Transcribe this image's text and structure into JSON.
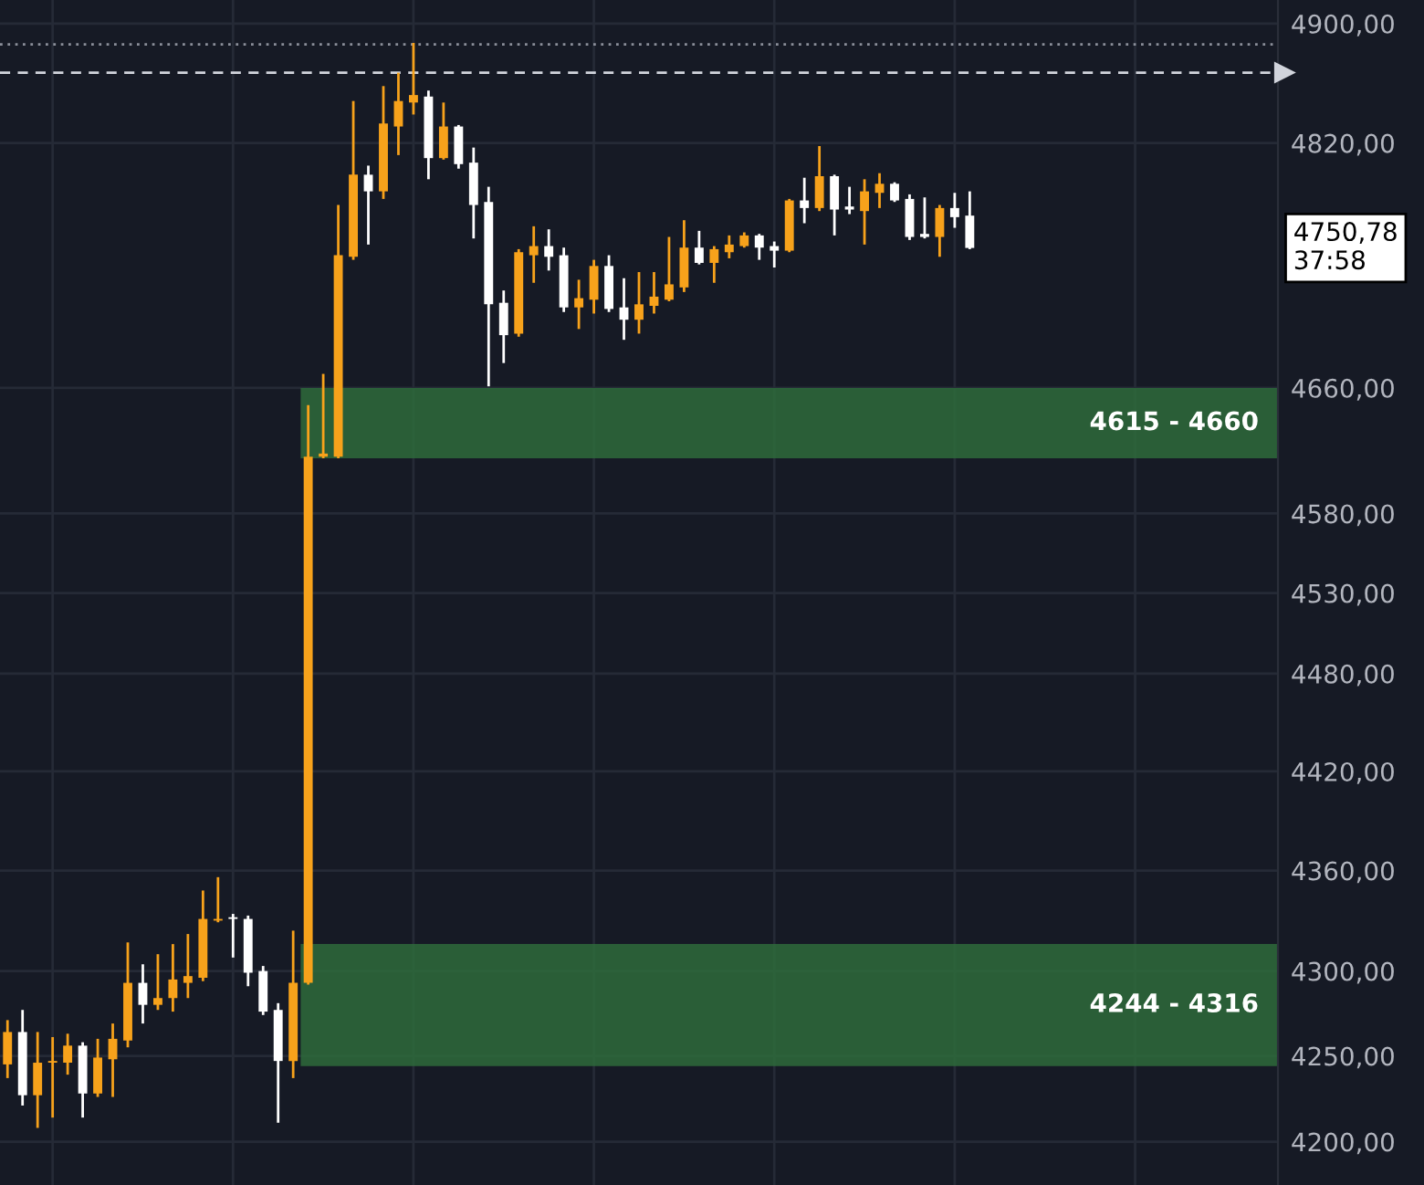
{
  "chart_data": {
    "type": "candlestick",
    "log": "y",
    "grid": true,
    "categories": [
      null,
      null,
      null,
      null,
      null,
      null,
      null,
      null,
      null,
      null,
      null,
      null,
      null,
      null,
      null,
      null,
      null,
      null,
      null,
      null,
      null,
      null,
      null,
      null,
      null,
      null,
      null,
      null,
      null,
      null,
      null,
      null,
      null,
      null,
      null,
      null,
      null,
      null,
      null,
      null,
      null,
      null,
      null,
      null,
      null,
      null,
      null,
      null,
      null,
      null,
      null,
      null,
      null,
      null,
      null,
      null,
      null,
      null,
      null,
      null,
      null,
      null,
      null,
      null,
      null,
      null,
      null,
      null,
      null,
      null,
      null,
      null,
      null,
      null,
      null,
      null,
      null,
      null,
      null,
      null,
      null,
      null,
      null,
      null,
      null
    ],
    "ohlc": [
      [
        4245,
        4271,
        4237,
        4264
      ],
      [
        4264,
        4277,
        4221,
        4227
      ],
      [
        4227,
        4264,
        4208,
        4246
      ],
      [
        4246,
        4261,
        4214,
        4247
      ],
      [
        4246,
        4263,
        4239,
        4256
      ],
      [
        4256,
        4258,
        4214,
        4228
      ],
      [
        4228,
        4260,
        4226,
        4249
      ],
      [
        4248,
        4269,
        4226,
        4260
      ],
      [
        4259,
        4317,
        4255,
        4293
      ],
      [
        4293,
        4304,
        4269,
        4280
      ],
      [
        4280,
        4310,
        4277,
        4284
      ],
      [
        4284,
        4316,
        4276,
        4295
      ],
      [
        4293,
        4322,
        4284,
        4297
      ],
      [
        4296,
        4348,
        4294,
        4331
      ],
      [
        4330,
        4356,
        4329,
        4331
      ],
      [
        4332,
        4334,
        4308,
        4331
      ],
      [
        4331,
        4333,
        4291,
        4299
      ],
      [
        4300,
        4303,
        4274,
        4276
      ],
      [
        4277,
        4281,
        4211,
        4247
      ],
      [
        4247,
        4324,
        4237,
        4293
      ],
      [
        4293,
        4649,
        4292,
        4616
      ],
      [
        4616,
        4669,
        4615,
        4618
      ],
      [
        4616,
        4779,
        4615,
        4746
      ],
      [
        4745,
        4848,
        4743,
        4799
      ],
      [
        4799,
        4805,
        4753,
        4788
      ],
      [
        4788,
        4858,
        4783,
        4833
      ],
      [
        4831,
        4867,
        4812,
        4848
      ],
      [
        4847,
        4887,
        4839,
        4852
      ],
      [
        4851,
        4855,
        4796,
        4810
      ],
      [
        4810,
        4847,
        4809,
        4831
      ],
      [
        4831,
        4832,
        4803,
        4806
      ],
      [
        4807,
        4817,
        4757,
        4779
      ],
      [
        4781,
        4791,
        4661,
        4714
      ],
      [
        4715,
        4723,
        4676,
        4694
      ],
      [
        4695,
        4750,
        4693,
        4748
      ],
      [
        4746,
        4765,
        4728,
        4752
      ],
      [
        4752,
        4763,
        4736,
        4745
      ],
      [
        4746,
        4751,
        4709,
        4712
      ],
      [
        4712,
        4730,
        4698,
        4718
      ],
      [
        4717,
        4743,
        4708,
        4739
      ],
      [
        4739,
        4746,
        4709,
        4711
      ],
      [
        4712,
        4731,
        4691,
        4704
      ],
      [
        4704,
        4735,
        4695,
        4714
      ],
      [
        4713,
        4735,
        4708,
        4719
      ],
      [
        4717,
        4758,
        4716,
        4727
      ],
      [
        4725,
        4769,
        4722,
        4751
      ],
      [
        4751,
        4762,
        4740,
        4741
      ],
      [
        4741,
        4752,
        4728,
        4750
      ],
      [
        4748,
        4759,
        4744,
        4753
      ],
      [
        4752,
        4761,
        4751,
        4759
      ],
      [
        4759,
        4760,
        4743,
        4751
      ],
      [
        4752,
        4755,
        4738,
        4749
      ],
      [
        4749,
        4783,
        4748,
        4782
      ],
      [
        4782,
        4797,
        4767,
        4777
      ],
      [
        4777,
        4818,
        4775,
        4798
      ],
      [
        4798,
        4799,
        4759,
        4776
      ],
      [
        4778,
        4791,
        4773,
        4776
      ],
      [
        4775,
        4796,
        4753,
        4788
      ],
      [
        4787,
        4800,
        4777,
        4793
      ],
      [
        4793,
        4794,
        4781,
        4782
      ],
      [
        4783,
        4786,
        4756,
        4758
      ],
      [
        4760,
        4784,
        4757,
        4758
      ],
      [
        4758,
        4779,
        4745,
        4777
      ],
      [
        4777,
        4787,
        4764,
        4771
      ],
      [
        4772,
        4788,
        4750,
        4750.78
      ],
      null,
      null,
      null,
      null,
      null,
      null,
      null,
      null,
      null,
      null,
      null,
      null,
      null,
      null,
      null,
      null,
      null,
      null,
      null,
      null
    ],
    "colors": [
      "#f7a21b",
      "#ffffff",
      "#f7a21b",
      "#f7a21b",
      "#f7a21b",
      "#ffffff",
      "#f7a21b",
      "#f7a21b",
      "#f7a21b",
      "#ffffff",
      "#f7a21b",
      "#f7a21b",
      "#f7a21b",
      "#f7a21b",
      "#f7a21b",
      "#ffffff",
      "#ffffff",
      "#ffffff",
      "#ffffff",
      "#f7a21b",
      "#f7a21b",
      "#f7a21b",
      "#f7a21b",
      "#f7a21b",
      "#ffffff",
      "#f7a21b",
      "#f7a21b",
      "#f7a21b",
      "#ffffff",
      "#f7a21b",
      "#ffffff",
      "#ffffff",
      "#ffffff",
      "#ffffff",
      "#f7a21b",
      "#f7a21b",
      "#ffffff",
      "#ffffff",
      "#f7a21b",
      "#f7a21b",
      "#ffffff",
      "#ffffff",
      "#f7a21b",
      "#f7a21b",
      "#f7a21b",
      "#f7a21b",
      "#ffffff",
      "#f7a21b",
      "#f7a21b",
      "#f7a21b",
      "#ffffff",
      "#ffffff",
      "#f7a21b",
      "#ffffff",
      "#f7a21b",
      "#ffffff",
      "#ffffff",
      "#f7a21b",
      "#f7a21b",
      "#ffffff",
      "#ffffff",
      "#ffffff",
      "#f7a21b",
      "#ffffff",
      "#ffffff",
      null,
      null,
      null,
      null,
      null,
      null,
      null,
      null,
      null,
      null,
      null,
      null,
      null,
      null,
      null,
      null,
      null,
      null,
      null,
      null
    ],
    "annotations": [
      "4750,78\n37:58"
    ],
    "ylim": [
      4175,
      4916
    ],
    "yticks": [
      {
        "value": 4200,
        "label": "4200,00"
      },
      {
        "value": 4250,
        "label": "4250,00"
      },
      {
        "value": 4300,
        "label": "4300,00"
      },
      {
        "value": 4360,
        "label": "4360,00"
      },
      {
        "value": 4420,
        "label": "4420,00"
      },
      {
        "value": 4480,
        "label": "4480,00"
      },
      {
        "value": 4530,
        "label": "4530,00"
      },
      {
        "value": 4580,
        "label": "4580,00"
      },
      {
        "value": 4660,
        "label": "4660,00"
      },
      {
        "value": 4820,
        "label": "4820,00"
      },
      {
        "value": 4900,
        "label": "4900,00"
      }
    ],
    "bands": [
      {
        "axis": "y",
        "from": 4615,
        "to": 4660,
        "label": "4615 - 4660",
        "color": "#2e6b3b"
      },
      {
        "axis": "y",
        "from": 4244,
        "to": 4316,
        "label": "4244 - 4316",
        "color": "#2e6b3b"
      }
    ],
    "ref_lines": [
      {
        "axis": "y",
        "value": 4886,
        "label": null,
        "color": "#8a8e99",
        "line_style": "dotted"
      },
      {
        "axis": "y",
        "value": 4867,
        "label": null,
        "color": "#d1d4dc",
        "line_style": "dashed"
      }
    ]
  }
}
